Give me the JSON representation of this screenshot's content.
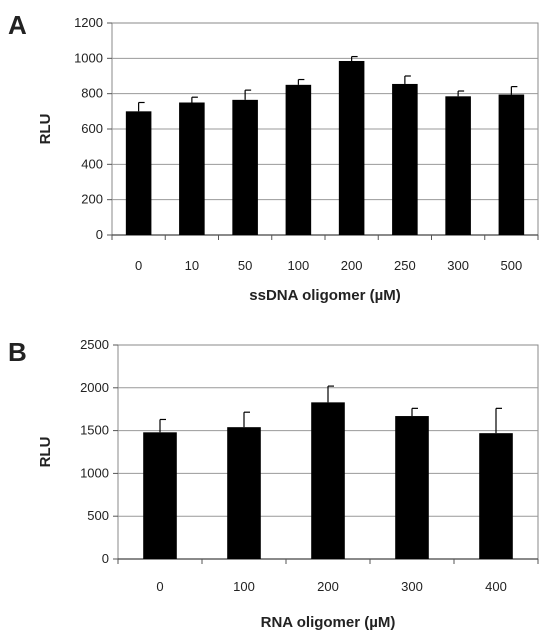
{
  "chart_data": [
    {
      "panel": "A",
      "type": "bar",
      "title": "",
      "xlabel": "ssDNA oligomer (µM)",
      "ylabel": "RLU",
      "categories": [
        "0",
        "10",
        "50",
        "100",
        "200",
        "250",
        "300",
        "500"
      ],
      "values": [
        700,
        750,
        765,
        850,
        985,
        855,
        785,
        795
      ],
      "errors": [
        50,
        30,
        55,
        30,
        25,
        45,
        30,
        45
      ],
      "ylim": [
        0,
        1200
      ],
      "yticks": [
        0,
        200,
        400,
        600,
        800,
        1000,
        1200
      ],
      "grid": true,
      "bar_color": "#000000",
      "gridline_color": "#999999"
    },
    {
      "panel": "B",
      "type": "bar",
      "title": "",
      "xlabel": "RNA oligomer (µM)",
      "ylabel": "RLU",
      "categories": [
        "0",
        "100",
        "200",
        "300",
        "400"
      ],
      "values": [
        1480,
        1540,
        1830,
        1670,
        1470
      ],
      "errors": [
        150,
        175,
        190,
        90,
        290
      ],
      "ylim": [
        0,
        2500
      ],
      "yticks": [
        0,
        500,
        1000,
        1500,
        2000,
        2500
      ],
      "grid": true,
      "bar_color": "#000000",
      "gridline_color": "#999999"
    }
  ]
}
